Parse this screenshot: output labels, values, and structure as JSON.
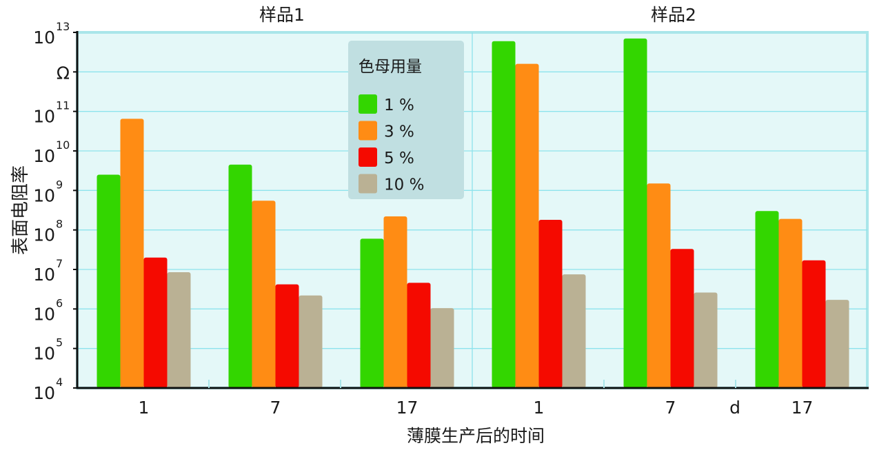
{
  "chart_data": {
    "type": "bar",
    "scale": "log",
    "ylim": [
      10000,
      10000000000000
    ],
    "yticks": [
      {
        "base": "10",
        "exp": "4"
      },
      {
        "base": "10",
        "exp": "5"
      },
      {
        "base": "10",
        "exp": "6"
      },
      {
        "base": "10",
        "exp": "7"
      },
      {
        "base": "10",
        "exp": "8"
      },
      {
        "base": "10",
        "exp": "9"
      },
      {
        "base": "10",
        "exp": "10"
      },
      {
        "base": "10",
        "exp": "11"
      },
      {
        "base": "Ω",
        "exp": ""
      },
      {
        "base": "10",
        "exp": "13"
      }
    ],
    "ylabel": "表面电阻率",
    "xlabel": "薄膜生产后的时间",
    "x_unit": "d",
    "groups": [
      {
        "title": "样品1",
        "categories": [
          "1",
          "7",
          "17"
        ]
      },
      {
        "title": "样品2",
        "categories": [
          "1",
          "7",
          "17"
        ]
      }
    ],
    "legend": {
      "title": "色母用量",
      "placement": "top-center"
    },
    "series": [
      {
        "name": "1 %",
        "color": "#33d600",
        "values": [
          2500000000.0,
          4500000000.0,
          60000000.0,
          6000000000000.0,
          7000000000000.0,
          300000000.0
        ]
      },
      {
        "name": "3 %",
        "color": "#ff8c14",
        "values": [
          65000000000.0,
          550000000.0,
          220000000.0,
          1600000000000.0,
          1500000000.0,
          190000000.0
        ]
      },
      {
        "name": "5 %",
        "color": "#f50a00",
        "values": [
          20000000.0,
          4200000.0,
          4600000.0,
          180000000.0,
          33000000.0,
          17000000.0
        ]
      },
      {
        "name": "10 %",
        "color": "#bab194",
        "values": [
          8500000.0,
          2200000.0,
          1050000.0,
          7500000.0,
          2600000.0,
          1700000.0
        ]
      }
    ],
    "grid": true
  }
}
